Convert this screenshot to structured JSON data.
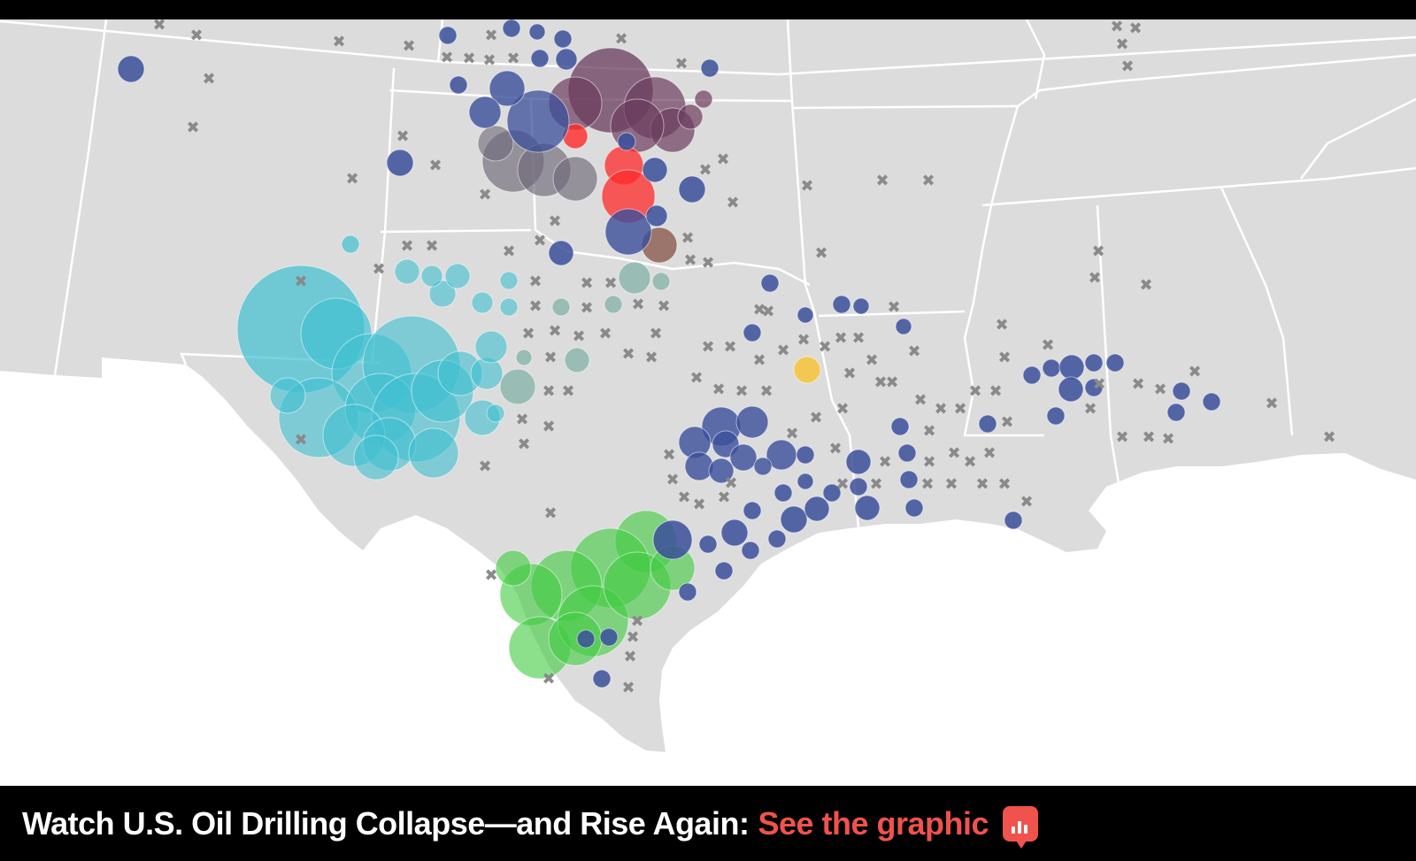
{
  "caption": {
    "title": "Watch U.S. Oil Drilling Collapse—and Rise Again:",
    "link_label": "See the graphic",
    "link_color": "#f0524d",
    "icon": "bar-chart-icon"
  },
  "map": {
    "land_color": "#dcdcdc",
    "water_color": "#ffffff",
    "border_color": "#ffffff",
    "marker_legend": {
      "x_marker": "gray x (inactive rig location)",
      "circle_marker": "colored circle (active rig cluster)"
    },
    "cluster_colors": {
      "permian": "#3fc0d0",
      "eagle_ford": "#3fcc3f",
      "anadarko": "#6b3c5e",
      "scoop": "#ff2a2a",
      "other": "#3b4f9b",
      "gray": "#6e6878",
      "teal": "#88b5aa",
      "yellow": "#f5c542",
      "brown": "#8b5a50"
    }
  }
}
